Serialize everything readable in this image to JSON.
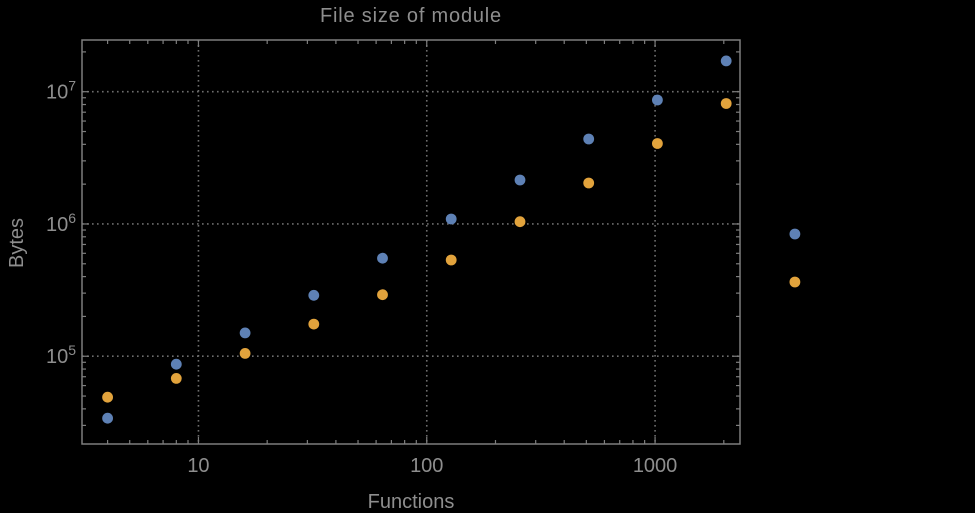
{
  "chart_data": {
    "type": "scatter",
    "title": "File size of module",
    "xlabel": "Functions",
    "ylabel": "Bytes",
    "x_scale": "log",
    "y_scale": "log",
    "x_range": [
      3.09,
      2355
    ],
    "y_range": [
      21700,
      24600000
    ],
    "grid": "dotted gridlines at decade ticks, frame on all four sides with log minor ticks",
    "legend": "none",
    "x": [
      4,
      8,
      16,
      32,
      64,
      128,
      256,
      512,
      1024,
      2048,
      4096
    ],
    "series": [
      {
        "name": "blue",
        "color": "#5E81B5",
        "values": [
          34000,
          87000,
          150000,
          289000,
          551000,
          1090000,
          2150000,
          4390000,
          8650000,
          17100000,
          840000
        ]
      },
      {
        "name": "orange",
        "color": "#E2A33C",
        "values": [
          49000,
          68000,
          105000,
          175000,
          292000,
          534000,
          1040000,
          2040000,
          4060000,
          8150000,
          364000
        ]
      }
    ],
    "x_ticks": [
      {
        "value": 10,
        "label": "10"
      },
      {
        "value": 100,
        "label": "100"
      },
      {
        "value": 1000,
        "label": "1000"
      }
    ],
    "y_ticks": [
      {
        "value": 100000,
        "base": "10",
        "exp": "5"
      },
      {
        "value": 1000000,
        "base": "10",
        "exp": "6"
      },
      {
        "value": 10000000,
        "base": "10",
        "exp": "7"
      }
    ],
    "note": "the two points at x=4096 are drawn outside the right edge of the plot frame",
    "colors": {
      "background": "#000000",
      "frame": "#7E7E7E",
      "grid": "#6E6E6E",
      "text": "#8E8E8E"
    }
  }
}
